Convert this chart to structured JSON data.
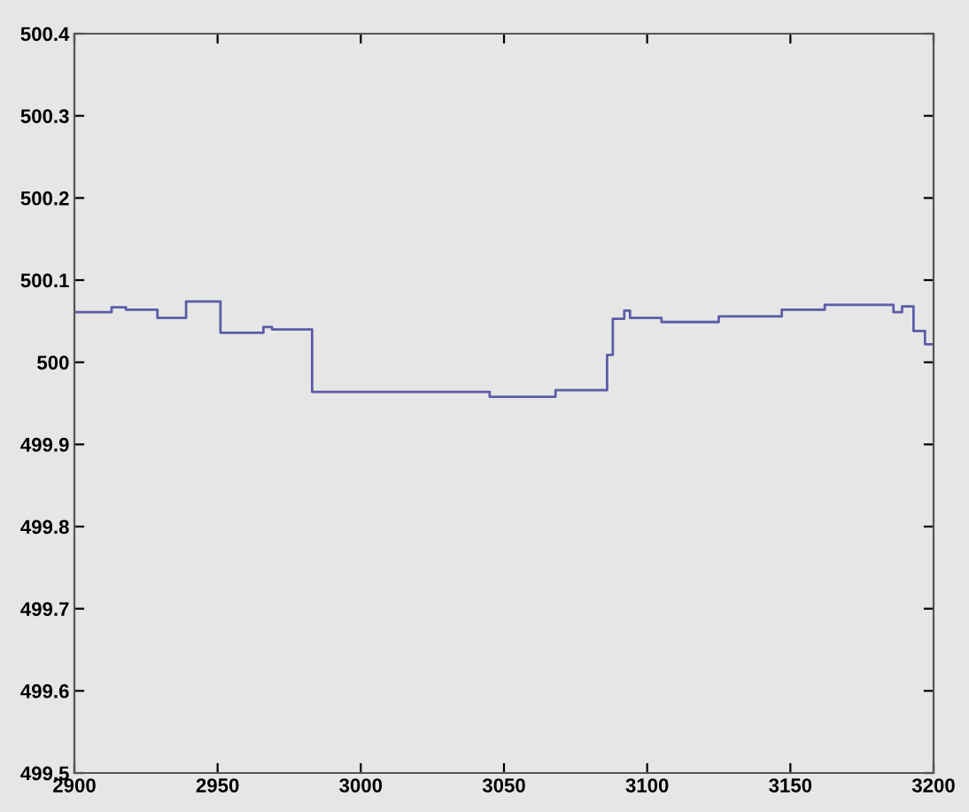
{
  "chart_data": {
    "type": "step",
    "x": [
      2900,
      2913,
      2918,
      2929,
      2939,
      2951,
      2966,
      2969,
      2983,
      3045,
      3068,
      3086,
      3088,
      3092,
      3094,
      3105,
      3125,
      3147,
      3162,
      3186,
      3189,
      3193,
      3197,
      3200
    ],
    "series": [
      {
        "color": "#5c5ca8",
        "values": [
          500.061,
          500.067,
          500.064,
          500.054,
          500.074,
          500.036,
          500.043,
          500.04,
          499.964,
          499.958,
          499.966,
          500.009,
          500.053,
          500.063,
          500.054,
          500.049,
          500.056,
          500.064,
          500.07,
          500.061,
          500.068,
          500.038,
          500.022,
          500.022
        ]
      }
    ],
    "xlim": [
      2900,
      3200
    ],
    "xticks": [
      2900,
      2950,
      3000,
      3050,
      3100,
      3150,
      3200
    ],
    "ylim": [
      499.5,
      500.4
    ],
    "yticks": [
      {
        "value": 499.5,
        "label": "499.5"
      },
      {
        "value": 499.6,
        "label": "499.6"
      },
      {
        "value": 499.7,
        "label": "499.7"
      },
      {
        "value": 499.8,
        "label": "499.8"
      },
      {
        "value": 499.9,
        "label": "499.9"
      },
      {
        "value": 500,
        "label": "500"
      },
      {
        "value": 500.1,
        "label": "500.1"
      },
      {
        "value": 500.2,
        "label": "500.2"
      },
      {
        "value": 500.3,
        "label": "500.3"
      },
      {
        "value": 500.4,
        "label": "500.4"
      }
    ],
    "grid": false,
    "legend": false,
    "marker": "none",
    "line_style": "solid"
  }
}
